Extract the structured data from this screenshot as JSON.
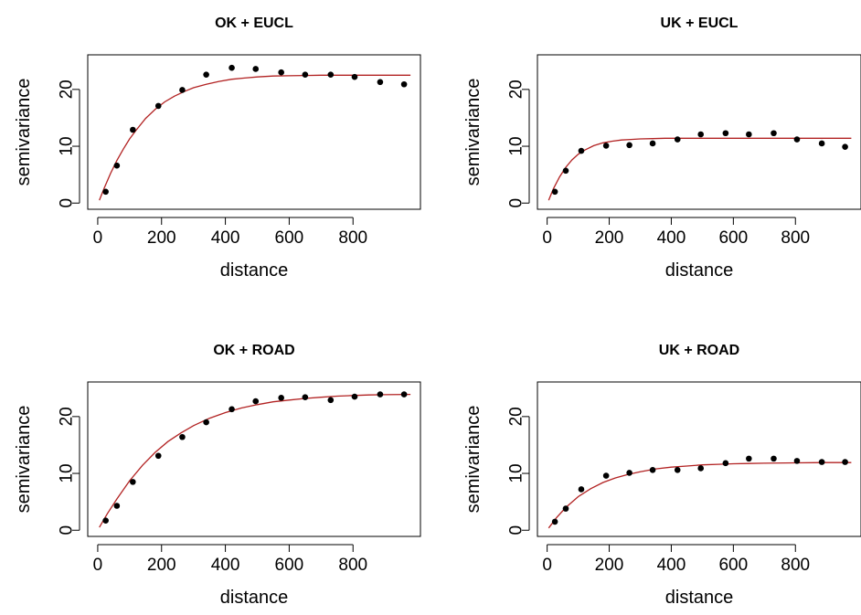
{
  "chart_data": [
    {
      "type": "scatter",
      "title": "OK + EUCL",
      "xlabel": "distance",
      "ylabel": "semivariance",
      "xlim": [
        0,
        980
      ],
      "ylim": [
        0,
        25
      ],
      "xticks": [
        0,
        200,
        400,
        600,
        800
      ],
      "yticks": [
        0,
        10,
        20
      ],
      "x_tick_labels": [
        "0",
        "200",
        "400",
        "600",
        "800"
      ],
      "y_tick_labels": [
        "0",
        "10",
        "20"
      ],
      "grid": false,
      "point_color": "#000000",
      "curve_color": "#b22222",
      "points": {
        "x": [
          25,
          60,
          110,
          190,
          265,
          340,
          420,
          495,
          575,
          650,
          730,
          805,
          885,
          960
        ],
        "y": [
          2.0,
          6.6,
          12.9,
          17.1,
          19.9,
          22.6,
          23.8,
          23.6,
          23.0,
          22.6,
          22.6,
          22.2,
          21.3,
          20.9
        ]
      },
      "fitted_curve": {
        "x": [
          5,
          20,
          40,
          60,
          80,
          100,
          120,
          150,
          180,
          210,
          240,
          270,
          300,
          340,
          380,
          420,
          460,
          500,
          550,
          600,
          650,
          700,
          750,
          800,
          850,
          900,
          980
        ],
        "y": [
          0.5,
          2.6,
          5.2,
          7.5,
          9.5,
          11.3,
          12.8,
          14.9,
          16.5,
          17.8,
          18.8,
          19.6,
          20.3,
          20.9,
          21.4,
          21.8,
          22.0,
          22.2,
          22.35,
          22.4,
          22.45,
          22.5,
          22.5,
          22.5,
          22.5,
          22.5,
          22.5
        ]
      }
    },
    {
      "type": "scatter",
      "title": "UK + EUCL",
      "xlabel": "distance",
      "ylabel": "semivariance",
      "xlim": [
        0,
        980
      ],
      "ylim": [
        0,
        25
      ],
      "xticks": [
        0,
        200,
        400,
        600,
        800
      ],
      "yticks": [
        0,
        10,
        20
      ],
      "x_tick_labels": [
        "0",
        "200",
        "400",
        "600",
        "800"
      ],
      "y_tick_labels": [
        "0",
        "10",
        "20"
      ],
      "grid": false,
      "point_color": "#000000",
      "curve_color": "#b22222",
      "points": {
        "x": [
          25,
          60,
          110,
          190,
          265,
          340,
          420,
          495,
          575,
          650,
          730,
          805,
          885,
          960
        ],
        "y": [
          2.0,
          5.7,
          9.2,
          10.1,
          10.2,
          10.5,
          11.2,
          12.1,
          12.3,
          12.1,
          12.3,
          11.2,
          10.5,
          9.9
        ]
      },
      "fitted_curve": {
        "x": [
          5,
          20,
          40,
          60,
          80,
          100,
          120,
          150,
          180,
          210,
          240,
          270,
          300,
          340,
          380,
          420,
          460,
          500,
          550,
          600,
          700,
          800,
          900,
          980
        ],
        "y": [
          0.5,
          2.5,
          4.6,
          6.3,
          7.6,
          8.6,
          9.3,
          10.1,
          10.6,
          10.9,
          11.1,
          11.2,
          11.3,
          11.35,
          11.4,
          11.4,
          11.4,
          11.4,
          11.4,
          11.4,
          11.4,
          11.4,
          11.4,
          11.4
        ]
      }
    },
    {
      "type": "scatter",
      "title": "OK + ROAD",
      "xlabel": "distance",
      "ylabel": "semivariance",
      "xlim": [
        0,
        980
      ],
      "ylim": [
        0,
        25
      ],
      "xticks": [
        0,
        200,
        400,
        600,
        800
      ],
      "yticks": [
        0,
        10,
        20
      ],
      "x_tick_labels": [
        "0",
        "200",
        "400",
        "600",
        "800"
      ],
      "y_tick_labels": [
        "0",
        "10",
        "20"
      ],
      "grid": false,
      "point_color": "#000000",
      "curve_color": "#b22222",
      "points": {
        "x": [
          25,
          60,
          110,
          190,
          265,
          340,
          420,
          495,
          575,
          650,
          730,
          805,
          885,
          960
        ],
        "y": [
          1.7,
          4.3,
          8.5,
          13.1,
          16.4,
          19.0,
          21.3,
          22.7,
          23.3,
          23.4,
          22.9,
          23.5,
          23.9,
          23.9
        ]
      },
      "fitted_curve": {
        "x": [
          5,
          30,
          60,
          100,
          140,
          180,
          220,
          260,
          300,
          350,
          400,
          450,
          500,
          550,
          600,
          650,
          700,
          750,
          800,
          850,
          900,
          980
        ],
        "y": [
          0.5,
          2.9,
          5.5,
          8.7,
          11.4,
          13.7,
          15.6,
          17.1,
          18.4,
          19.7,
          20.7,
          21.5,
          22.1,
          22.6,
          22.9,
          23.2,
          23.4,
          23.6,
          23.7,
          23.8,
          23.85,
          23.9
        ]
      }
    },
    {
      "type": "scatter",
      "title": "UK + ROAD",
      "xlabel": "distance",
      "ylabel": "semivariance",
      "xlim": [
        0,
        980
      ],
      "ylim": [
        0,
        25
      ],
      "xticks": [
        0,
        200,
        400,
        600,
        800
      ],
      "yticks": [
        0,
        10,
        20
      ],
      "x_tick_labels": [
        "0",
        "200",
        "400",
        "600",
        "800"
      ],
      "y_tick_labels": [
        "0",
        "10",
        "20"
      ],
      "grid": false,
      "point_color": "#000000",
      "curve_color": "#b22222",
      "points": {
        "x": [
          25,
          60,
          110,
          190,
          265,
          340,
          420,
          495,
          575,
          650,
          730,
          805,
          885,
          960
        ],
        "y": [
          1.5,
          3.8,
          7.2,
          9.6,
          10.1,
          10.6,
          10.6,
          10.9,
          11.8,
          12.6,
          12.6,
          12.2,
          12.0,
          12.0
        ]
      },
      "fitted_curve": {
        "x": [
          5,
          30,
          60,
          100,
          140,
          180,
          220,
          260,
          300,
          350,
          400,
          450,
          500,
          550,
          600,
          650,
          700,
          800,
          900,
          980
        ],
        "y": [
          0.4,
          2.2,
          4.0,
          5.9,
          7.3,
          8.4,
          9.2,
          9.8,
          10.3,
          10.8,
          11.1,
          11.3,
          11.5,
          11.6,
          11.7,
          11.75,
          11.8,
          11.85,
          11.9,
          11.9
        ]
      }
    }
  ]
}
